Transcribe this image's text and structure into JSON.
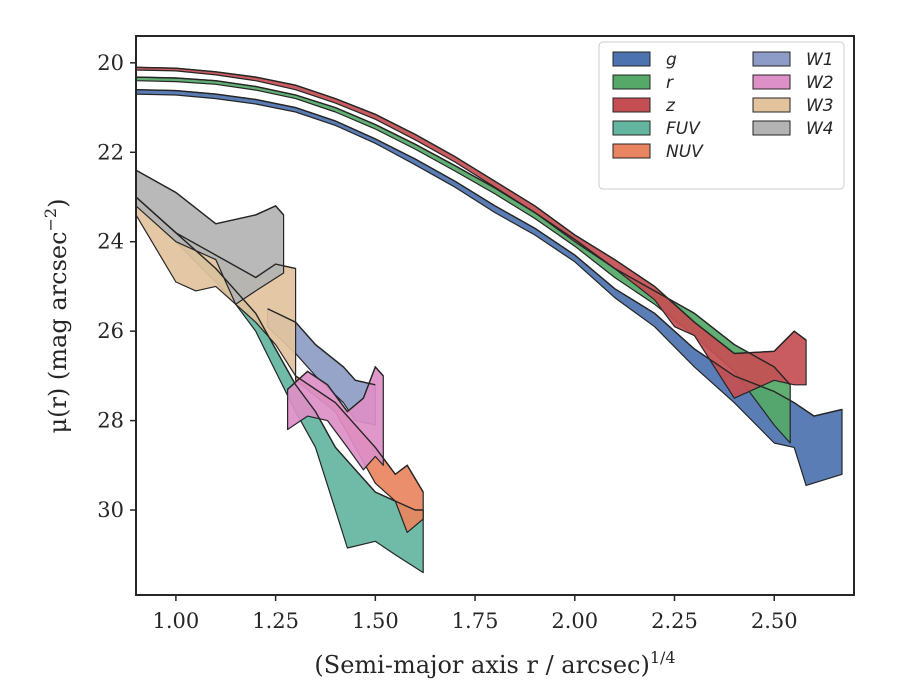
{
  "chart_data": {
    "type": "area",
    "xlabel": "(Semi-major axis r / arcsec)",
    "xlabel_italic_symbol": "r",
    "xlabel_exponent": "1/4",
    "ylabel": "μ(r) (mag arcsec",
    "ylabel_exponent": "−2",
    "ylabel_close": ")",
    "xlim": [
      0.9,
      2.7
    ],
    "ylim": [
      31.9,
      19.4
    ],
    "y_inverted": true,
    "x_ticks": [
      1.0,
      1.25,
      1.5,
      1.75,
      2.0,
      2.25,
      2.5
    ],
    "x_tick_labels": [
      "1.00",
      "1.25",
      "1.50",
      "1.75",
      "2.00",
      "2.25",
      "2.50"
    ],
    "y_ticks": [
      20,
      22,
      24,
      26,
      28,
      30
    ],
    "y_tick_labels": [
      "20",
      "22",
      "24",
      "26",
      "28",
      "30"
    ],
    "grid": false,
    "legend": {
      "placement": "top-right",
      "columns": 2
    },
    "series": [
      {
        "name": "g",
        "color": "#4c72b0",
        "upper": [
          [
            0.9,
            20.6
          ],
          [
            1.0,
            20.62
          ],
          [
            1.1,
            20.7
          ],
          [
            1.2,
            20.82
          ],
          [
            1.3,
            21.0
          ],
          [
            1.4,
            21.3
          ],
          [
            1.5,
            21.7
          ],
          [
            1.6,
            22.15
          ],
          [
            1.7,
            22.65
          ],
          [
            1.8,
            23.2
          ],
          [
            1.9,
            23.7
          ],
          [
            2.0,
            24.3
          ],
          [
            2.1,
            25.05
          ],
          [
            2.2,
            25.6
          ],
          [
            2.3,
            26.4
          ],
          [
            2.4,
            27.0
          ],
          [
            2.5,
            27.35
          ],
          [
            2.55,
            27.6
          ],
          [
            2.6,
            27.9
          ],
          [
            2.67,
            27.75
          ]
        ],
        "lower": [
          [
            0.9,
            20.7
          ],
          [
            1.0,
            20.72
          ],
          [
            1.1,
            20.8
          ],
          [
            1.2,
            20.92
          ],
          [
            1.3,
            21.1
          ],
          [
            1.4,
            21.4
          ],
          [
            1.5,
            21.8
          ],
          [
            1.6,
            22.28
          ],
          [
            1.7,
            22.78
          ],
          [
            1.8,
            23.35
          ],
          [
            1.9,
            23.85
          ],
          [
            2.0,
            24.45
          ],
          [
            2.1,
            25.25
          ],
          [
            2.2,
            25.9
          ],
          [
            2.3,
            26.8
          ],
          [
            2.4,
            27.6
          ],
          [
            2.5,
            28.5
          ],
          [
            2.55,
            28.6
          ],
          [
            2.58,
            29.45
          ],
          [
            2.67,
            29.2
          ]
        ]
      },
      {
        "name": "r",
        "color": "#55a868",
        "upper": [
          [
            0.9,
            20.32
          ],
          [
            1.0,
            20.34
          ],
          [
            1.1,
            20.4
          ],
          [
            1.2,
            20.53
          ],
          [
            1.3,
            20.72
          ],
          [
            1.4,
            21.0
          ],
          [
            1.5,
            21.38
          ],
          [
            1.6,
            21.82
          ],
          [
            1.7,
            22.3
          ],
          [
            1.8,
            22.8
          ],
          [
            1.9,
            23.35
          ],
          [
            2.0,
            23.95
          ],
          [
            2.1,
            24.6
          ],
          [
            2.2,
            25.1
          ],
          [
            2.3,
            25.6
          ],
          [
            2.4,
            26.3
          ],
          [
            2.5,
            26.8
          ],
          [
            2.54,
            27.2
          ]
        ],
        "lower": [
          [
            0.9,
            20.4
          ],
          [
            1.0,
            20.42
          ],
          [
            1.1,
            20.48
          ],
          [
            1.2,
            20.61
          ],
          [
            1.3,
            20.8
          ],
          [
            1.4,
            21.1
          ],
          [
            1.5,
            21.48
          ],
          [
            1.6,
            21.93
          ],
          [
            1.7,
            22.42
          ],
          [
            1.8,
            22.93
          ],
          [
            1.9,
            23.48
          ],
          [
            2.0,
            24.1
          ],
          [
            2.1,
            24.8
          ],
          [
            2.2,
            25.4
          ],
          [
            2.3,
            26.1
          ],
          [
            2.4,
            26.9
          ],
          [
            2.5,
            28.1
          ],
          [
            2.54,
            28.5
          ]
        ]
      },
      {
        "name": "z",
        "color": "#c44e52",
        "upper": [
          [
            0.9,
            20.1
          ],
          [
            1.0,
            20.12
          ],
          [
            1.1,
            20.2
          ],
          [
            1.2,
            20.32
          ],
          [
            1.3,
            20.5
          ],
          [
            1.4,
            20.8
          ],
          [
            1.5,
            21.15
          ],
          [
            1.6,
            21.6
          ],
          [
            1.7,
            22.1
          ],
          [
            1.8,
            22.65
          ],
          [
            1.9,
            23.2
          ],
          [
            2.0,
            23.85
          ],
          [
            2.1,
            24.4
          ],
          [
            2.2,
            25.0
          ],
          [
            2.25,
            25.4
          ],
          [
            2.3,
            25.8
          ],
          [
            2.4,
            26.5
          ],
          [
            2.5,
            26.45
          ],
          [
            2.55,
            26.0
          ],
          [
            2.58,
            26.2
          ]
        ],
        "lower": [
          [
            0.9,
            20.16
          ],
          [
            1.0,
            20.18
          ],
          [
            1.1,
            20.27
          ],
          [
            1.2,
            20.4
          ],
          [
            1.3,
            20.6
          ],
          [
            1.4,
            20.9
          ],
          [
            1.5,
            21.26
          ],
          [
            1.6,
            21.72
          ],
          [
            1.7,
            22.22
          ],
          [
            1.8,
            22.78
          ],
          [
            1.9,
            23.35
          ],
          [
            2.0,
            24.0
          ],
          [
            2.1,
            24.6
          ],
          [
            2.2,
            25.3
          ],
          [
            2.25,
            25.9
          ],
          [
            2.3,
            26.1
          ],
          [
            2.4,
            27.5
          ],
          [
            2.5,
            27.1
          ],
          [
            2.55,
            27.2
          ],
          [
            2.58,
            27.2
          ]
        ]
      },
      {
        "name": "FUV",
        "color": "#64b5a0",
        "upper": [
          [
            0.9,
            23.0
          ],
          [
            1.0,
            23.8
          ],
          [
            1.1,
            24.6
          ],
          [
            1.2,
            25.6
          ],
          [
            1.25,
            26.4
          ],
          [
            1.3,
            27.2
          ],
          [
            1.35,
            27.8
          ],
          [
            1.4,
            28.6
          ],
          [
            1.45,
            29.1
          ],
          [
            1.5,
            29.6
          ],
          [
            1.55,
            29.8
          ],
          [
            1.6,
            30.0
          ],
          [
            1.62,
            30.0
          ]
        ],
        "lower": [
          [
            0.9,
            23.1
          ],
          [
            1.0,
            24.0
          ],
          [
            1.1,
            24.9
          ],
          [
            1.15,
            25.4
          ],
          [
            1.2,
            26.0
          ],
          [
            1.25,
            26.9
          ],
          [
            1.3,
            27.8
          ],
          [
            1.35,
            28.6
          ],
          [
            1.4,
            30.0
          ],
          [
            1.43,
            30.85
          ],
          [
            1.5,
            30.7
          ],
          [
            1.55,
            31.0
          ],
          [
            1.62,
            31.4
          ]
        ]
      },
      {
        "name": "NUV",
        "color": "#e8845f",
        "upper": [
          [
            1.3,
            27.0
          ],
          [
            1.4,
            27.6
          ],
          [
            1.5,
            28.6
          ],
          [
            1.55,
            29.2
          ],
          [
            1.58,
            29.0
          ],
          [
            1.62,
            29.6
          ]
        ],
        "lower": [
          [
            1.3,
            27.1
          ],
          [
            1.4,
            27.8
          ],
          [
            1.5,
            29.4
          ],
          [
            1.55,
            29.8
          ],
          [
            1.58,
            30.5
          ],
          [
            1.62,
            30.2
          ]
        ]
      },
      {
        "name": "W1",
        "color": "#8d9cc6",
        "upper": [
          [
            1.23,
            25.5
          ],
          [
            1.3,
            25.8
          ],
          [
            1.35,
            26.3
          ],
          [
            1.42,
            26.8
          ],
          [
            1.45,
            27.1
          ],
          [
            1.5,
            27.2
          ]
        ],
        "lower": [
          [
            1.23,
            25.9
          ],
          [
            1.3,
            26.5
          ],
          [
            1.35,
            27.0
          ],
          [
            1.42,
            27.6
          ],
          [
            1.45,
            28.0
          ],
          [
            1.5,
            28.1
          ]
        ]
      },
      {
        "name": "W2",
        "color": "#dd8fc7",
        "upper": [
          [
            1.28,
            27.3
          ],
          [
            1.33,
            26.9
          ],
          [
            1.38,
            27.2
          ],
          [
            1.43,
            27.8
          ],
          [
            1.47,
            27.5
          ],
          [
            1.5,
            26.8
          ],
          [
            1.52,
            27.0
          ]
        ],
        "lower": [
          [
            1.28,
            28.2
          ],
          [
            1.33,
            27.9
          ],
          [
            1.38,
            28.0
          ],
          [
            1.43,
            28.6
          ],
          [
            1.47,
            29.1
          ],
          [
            1.5,
            28.8
          ],
          [
            1.52,
            29.0
          ]
        ]
      },
      {
        "name": "W3",
        "color": "#e2c39e",
        "upper": [
          [
            0.9,
            23.0
          ],
          [
            1.0,
            23.8
          ],
          [
            1.1,
            24.3
          ],
          [
            1.2,
            24.8
          ],
          [
            1.25,
            24.5
          ],
          [
            1.3,
            24.6
          ]
        ],
        "lower": [
          [
            0.9,
            23.4
          ],
          [
            1.0,
            24.9
          ],
          [
            1.05,
            25.1
          ],
          [
            1.1,
            25.0
          ],
          [
            1.2,
            25.8
          ],
          [
            1.25,
            26.3
          ],
          [
            1.3,
            27.0
          ]
        ]
      },
      {
        "name": "W4",
        "color": "#b3b3b3",
        "upper": [
          [
            0.9,
            22.4
          ],
          [
            1.0,
            22.9
          ],
          [
            1.1,
            23.6
          ],
          [
            1.2,
            23.4
          ],
          [
            1.25,
            23.2
          ],
          [
            1.27,
            23.4
          ]
        ],
        "lower": [
          [
            0.9,
            23.2
          ],
          [
            1.0,
            24.0
          ],
          [
            1.1,
            24.4
          ],
          [
            1.15,
            25.4
          ],
          [
            1.2,
            25.1
          ],
          [
            1.27,
            24.7
          ]
        ]
      }
    ]
  }
}
